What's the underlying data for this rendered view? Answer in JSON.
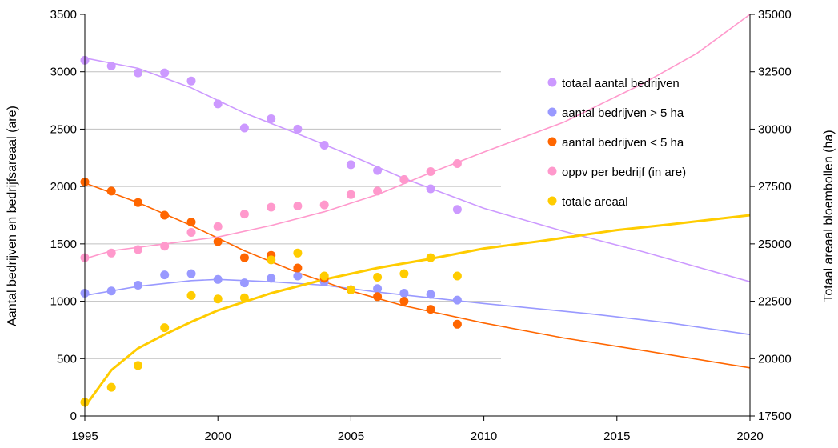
{
  "chart_data": {
    "type": "scatter",
    "x_axis": {
      "range": [
        1995,
        2020
      ],
      "ticks": [
        "1995",
        "2000",
        "2005",
        "2010",
        "2015",
        "2020"
      ]
    },
    "y_left": {
      "label": "Aantal bedrijven en bedrijfsareaal (are)",
      "range": [
        0,
        3500
      ],
      "ticks": [
        "0",
        "500",
        "1000",
        "1500",
        "2000",
        "2500",
        "3000",
        "3500"
      ]
    },
    "y_right": {
      "label": "Totaal areaal bloembollen (ha)",
      "range": [
        17500,
        35000
      ],
      "ticks": [
        "17500",
        "20000",
        "22500",
        "25000",
        "27500",
        "30000",
        "32500",
        "35000"
      ]
    },
    "grid": true,
    "legend_position": "right",
    "series": [
      {
        "name": "totaal aantal bedrijven",
        "color": "#cc99ff",
        "axis": "left",
        "points": [
          [
            1995,
            3100
          ],
          [
            1996,
            3050
          ],
          [
            1997,
            2990
          ],
          [
            1998,
            2990
          ],
          [
            1999,
            2920
          ],
          [
            2000,
            2720
          ],
          [
            2001,
            2510
          ],
          [
            2002,
            2590
          ],
          [
            2003,
            2500
          ],
          [
            2004,
            2360
          ],
          [
            2005,
            2190
          ],
          [
            2006,
            2140
          ],
          [
            2007,
            2060
          ],
          [
            2008,
            1980
          ],
          [
            2009,
            1800
          ]
        ],
        "trend": [
          [
            1995,
            3120
          ],
          [
            1997,
            3030
          ],
          [
            1999,
            2860
          ],
          [
            2001,
            2640
          ],
          [
            2003,
            2460
          ],
          [
            2005,
            2270
          ],
          [
            2007,
            2070
          ],
          [
            2010,
            1810
          ],
          [
            2013,
            1610
          ],
          [
            2016,
            1430
          ],
          [
            2020,
            1170
          ]
        ]
      },
      {
        "name": "aantal bedrijven > 5 ha",
        "color": "#9999ff",
        "axis": "left",
        "points": [
          [
            1995,
            1070
          ],
          [
            1996,
            1090
          ],
          [
            1997,
            1140
          ],
          [
            1998,
            1230
          ],
          [
            1999,
            1240
          ],
          [
            2000,
            1190
          ],
          [
            2001,
            1160
          ],
          [
            2002,
            1200
          ],
          [
            2003,
            1220
          ],
          [
            2004,
            1170
          ],
          [
            2005,
            1100
          ],
          [
            2006,
            1110
          ],
          [
            2007,
            1070
          ],
          [
            2008,
            1060
          ],
          [
            2009,
            1010
          ]
        ],
        "trend": [
          [
            1995,
            1050
          ],
          [
            1997,
            1130
          ],
          [
            1999,
            1180
          ],
          [
            2000,
            1190
          ],
          [
            2002,
            1170
          ],
          [
            2004,
            1140
          ],
          [
            2006,
            1080
          ],
          [
            2008,
            1030
          ],
          [
            2010,
            980
          ],
          [
            2014,
            890
          ],
          [
            2017,
            810
          ],
          [
            2020,
            710
          ]
        ]
      },
      {
        "name": "aantal bedrijven < 5 ha",
        "color": "#ff6600",
        "axis": "left",
        "points": [
          [
            1995,
            2040
          ],
          [
            1996,
            1960
          ],
          [
            1997,
            1860
          ],
          [
            1998,
            1750
          ],
          [
            1999,
            1690
          ],
          [
            2000,
            1520
          ],
          [
            2001,
            1380
          ],
          [
            2002,
            1400
          ],
          [
            2003,
            1290
          ],
          [
            2004,
            1200
          ],
          [
            2005,
            1100
          ],
          [
            2006,
            1040
          ],
          [
            2007,
            1000
          ],
          [
            2008,
            930
          ],
          [
            2009,
            800
          ]
        ],
        "trend": [
          [
            1995,
            2030
          ],
          [
            1997,
            1860
          ],
          [
            1999,
            1660
          ],
          [
            2001,
            1440
          ],
          [
            2003,
            1250
          ],
          [
            2005,
            1090
          ],
          [
            2007,
            960
          ],
          [
            2010,
            810
          ],
          [
            2013,
            680
          ],
          [
            2016,
            570
          ],
          [
            2020,
            420
          ]
        ]
      },
      {
        "name": "oppv per bedrijf (in are)",
        "color": "#ff99cc",
        "axis": "left",
        "points": [
          [
            1995,
            1380
          ],
          [
            1996,
            1420
          ],
          [
            1997,
            1450
          ],
          [
            1998,
            1480
          ],
          [
            1999,
            1600
          ],
          [
            2000,
            1650
          ],
          [
            2001,
            1760
          ],
          [
            2002,
            1820
          ],
          [
            2003,
            1830
          ],
          [
            2004,
            1840
          ],
          [
            2005,
            1930
          ],
          [
            2006,
            1960
          ],
          [
            2007,
            2060
          ],
          [
            2008,
            2130
          ],
          [
            2009,
            2200
          ]
        ],
        "trend": [
          [
            1995,
            1370
          ],
          [
            1996,
            1440
          ],
          [
            1998,
            1500
          ],
          [
            2000,
            1560
          ],
          [
            2002,
            1660
          ],
          [
            2004,
            1780
          ],
          [
            2006,
            1930
          ],
          [
            2008,
            2120
          ],
          [
            2010,
            2300
          ],
          [
            2013,
            2560
          ],
          [
            2016,
            2900
          ],
          [
            2018,
            3160
          ],
          [
            2020,
            3500
          ]
        ]
      },
      {
        "name": "totale areaal",
        "color": "#ffcc00",
        "axis": "right",
        "points": [
          [
            1995,
            18100
          ],
          [
            1996,
            18750
          ],
          [
            1997,
            19700
          ],
          [
            1998,
            21350
          ],
          [
            1999,
            22750
          ],
          [
            2000,
            22600
          ],
          [
            2001,
            22650
          ],
          [
            2002,
            24300
          ],
          [
            2003,
            24600
          ],
          [
            2004,
            23600
          ],
          [
            2005,
            23000
          ],
          [
            2006,
            23550
          ],
          [
            2007,
            23700
          ],
          [
            2008,
            24400
          ],
          [
            2009,
            23600
          ]
        ],
        "trend": [
          [
            1995,
            17900
          ],
          [
            1996,
            19500
          ],
          [
            1997,
            20450
          ],
          [
            1998,
            21050
          ],
          [
            1999,
            21600
          ],
          [
            2000,
            22100
          ],
          [
            2002,
            22850
          ],
          [
            2004,
            23450
          ],
          [
            2006,
            23950
          ],
          [
            2008,
            24350
          ],
          [
            2010,
            24800
          ],
          [
            2012,
            25100
          ],
          [
            2015,
            25600
          ],
          [
            2017,
            25850
          ],
          [
            2020,
            26250
          ]
        ]
      }
    ]
  }
}
